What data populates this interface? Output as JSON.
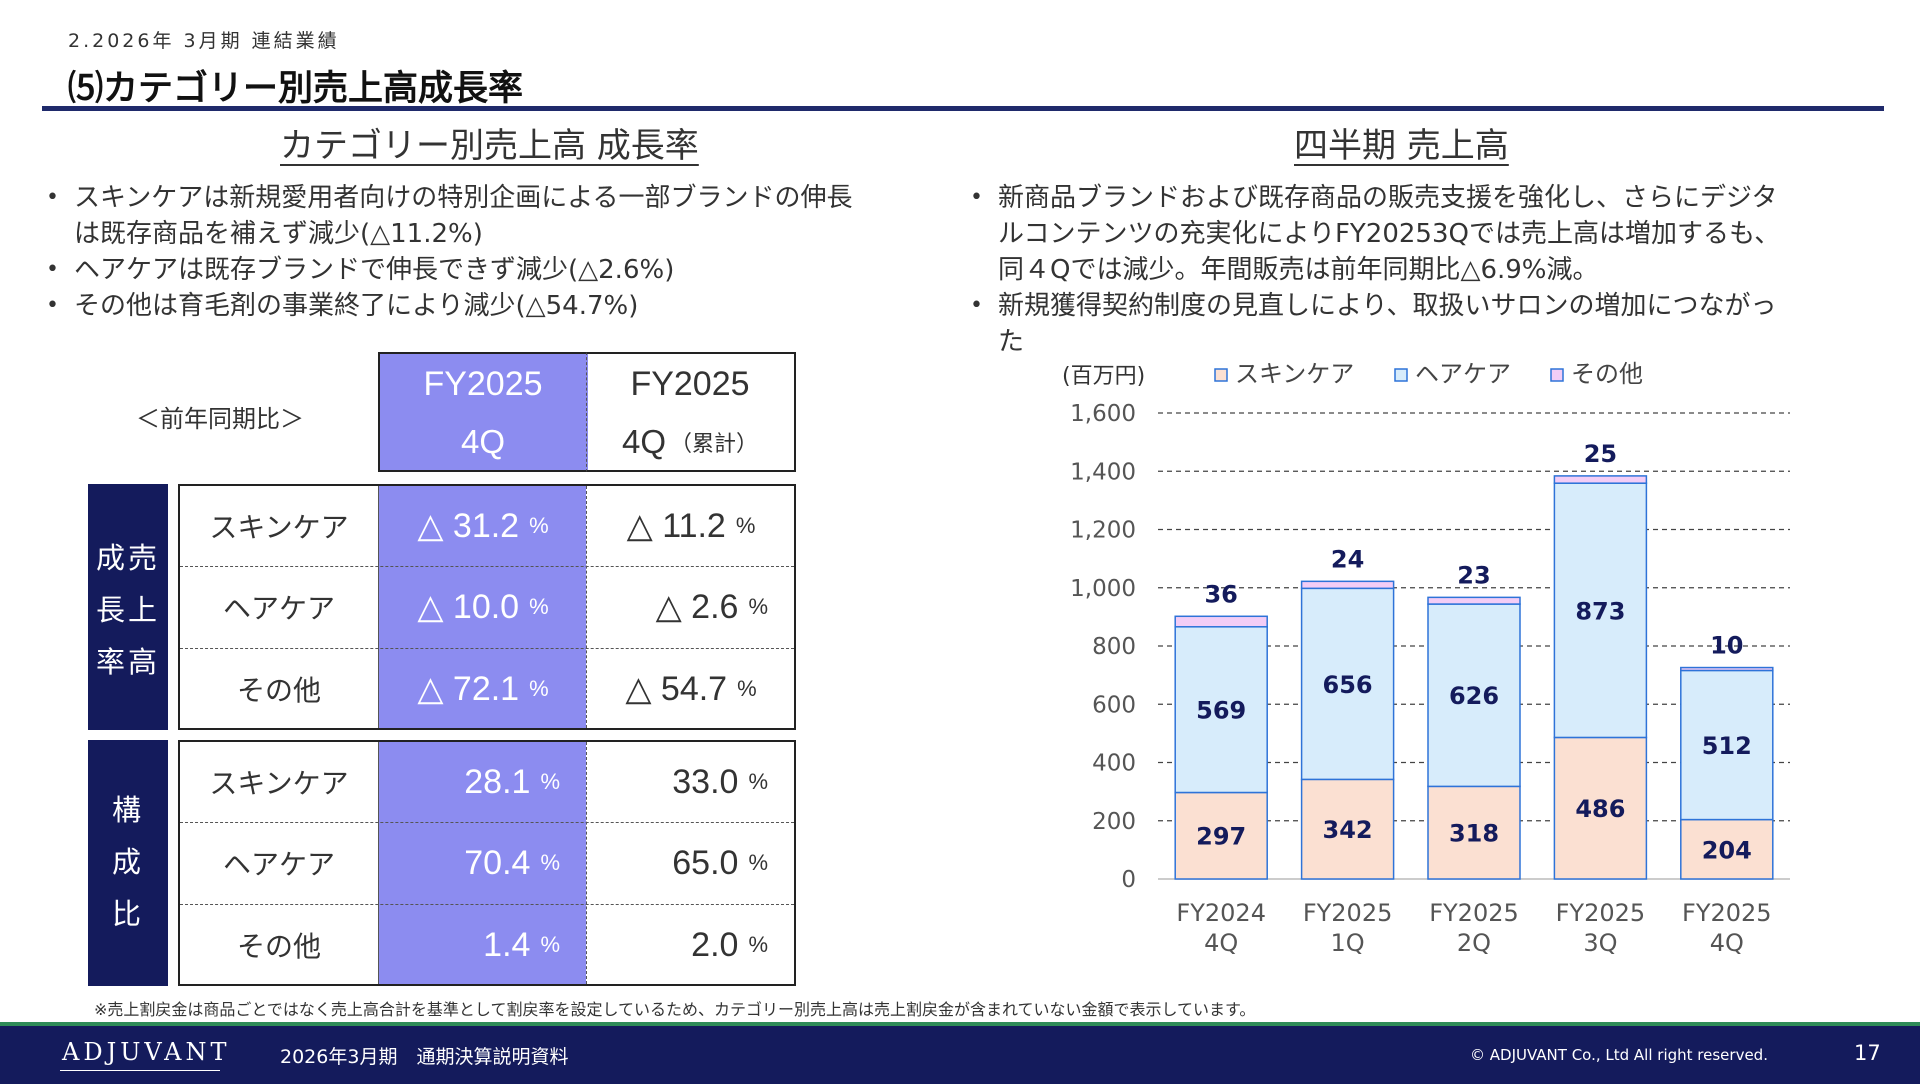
{
  "header": {
    "section": "2.2026年 3月期 連結業績",
    "title": "⑸カテゴリー別売上高成長率"
  },
  "left": {
    "heading": "カテゴリー別売上高 成長率",
    "bullets": [
      "スキンケアは新規愛用者向けの特別企画による一部ブランドの伸長は既存商品を補えず減少(△11.2%)",
      "ヘアケアは既存ブランドで伸長できず減少(△2.6%)",
      "その他は育毛剤の事業終了により減少(△54.7%)"
    ],
    "table": {
      "corner_label": "＜前年同期比＞",
      "col1": {
        "line1": "FY2025",
        "line2": "4Q"
      },
      "col2": {
        "line1": "FY2025",
        "line2": "4Q",
        "note": "（累計）"
      },
      "pct_symbol": "%",
      "growth": {
        "label_col1": "売上高",
        "label_col2": "成長率",
        "rows": [
          {
            "category": "スキンケア",
            "q4": "△ 31.2",
            "cum": "△ 11.2"
          },
          {
            "category": "ヘアケア",
            "q4": "△ 10.0",
            "cum": "△ 2.6"
          },
          {
            "category": "その他",
            "q4": "△ 72.1",
            "cum": "△ 54.7"
          }
        ]
      },
      "composition": {
        "label": "構成比",
        "rows": [
          {
            "category": "スキンケア",
            "q4": "28.1",
            "cum": "33.0"
          },
          {
            "category": "ヘアケア",
            "q4": "70.4",
            "cum": "65.0"
          },
          {
            "category": "その他",
            "q4": "1.4",
            "cum": "2.0"
          }
        ]
      }
    }
  },
  "right": {
    "heading": "四半期 売上高",
    "bullets": [
      "新商品ブランドおよび既存商品の販売支援を強化し、さらにデジタ ルコンテンツの充実化によりFY20253Qでは売上高は増加するも、同４Qでは減少。年間販売は前年同期比△6.9%減。",
      "新規獲得契約制度の見直しにより、取扱いサロンの増加につながった"
    ]
  },
  "chart_data": {
    "type": "bar",
    "stacked": true,
    "unit_label": "(百万円)",
    "categories": [
      [
        "FY2024",
        "4Q"
      ],
      [
        "FY2025",
        "1Q"
      ],
      [
        "FY2025",
        "2Q"
      ],
      [
        "FY2025",
        "3Q"
      ],
      [
        "FY2025",
        "4Q"
      ]
    ],
    "series": [
      {
        "name": "スキンケア",
        "values": [
          297,
          342,
          318,
          486,
          204
        ],
        "color": "#fbe0d2"
      },
      {
        "name": "ヘアケア",
        "values": [
          569,
          656,
          626,
          873,
          512
        ],
        "color": "#d7ecfb"
      },
      {
        "name": "その他",
        "values": [
          36,
          24,
          23,
          25,
          10
        ],
        "color": "#f3cdf6"
      }
    ],
    "ylim": [
      0,
      1600
    ],
    "yticks": [
      "0",
      "200",
      "400",
      "600",
      "800",
      "1,000",
      "1,200",
      "1,400",
      "1,600"
    ],
    "grid": true,
    "legend": "top",
    "edge_color": "#2e73d8",
    "label_color": "#141b5c"
  },
  "footnote": "※売上割戻金は商品ごとではなく売上高合計を基準として割戻率を設定しているため、カテゴリー別売上高は売上割戻金が含まれていない金額で表示しています。",
  "footer": {
    "logo": "ADJUVANT",
    "deck_title": "2026年3月期　通期決算説明資料",
    "copyright": "© ADJUVANT Co., Ltd All right reserved.",
    "page": "17"
  }
}
